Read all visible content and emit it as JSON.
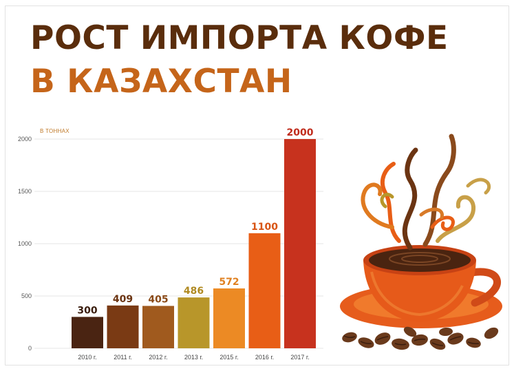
{
  "title": {
    "line1": "РОСТ ИМПОРТА КОФЕ",
    "line2": "В КАЗАХСТАН"
  },
  "unit_label": "В ТОННАХ",
  "chart_data": {
    "type": "bar",
    "title": "РОСТ ИМПОРТА КОФЕ В КАЗАХСТАН",
    "ylabel": "В ТОННАХ",
    "xlabel": "",
    "categories": [
      "2010 г.",
      "2011 г.",
      "2012 г.",
      "2013 г.",
      "2015 г.",
      "2016 г.",
      "2017 г."
    ],
    "values": [
      300,
      409,
      405,
      486,
      572,
      1100,
      2000
    ],
    "data_labels": [
      "300",
      "409",
      "405",
      "486",
      "572",
      "1100",
      "2000"
    ],
    "yticks": [
      0,
      500,
      1000,
      1500,
      2000
    ],
    "ylim": [
      0,
      2000
    ],
    "grid": true,
    "legend": "none",
    "bar_colors": [
      "#4a2412",
      "#7a3a14",
      "#a05a1e",
      "#b8962a",
      "#ec8a24",
      "#e85e16",
      "#c7321e"
    ],
    "label_colors": [
      "#3a1d0e",
      "#6b3412",
      "#8a4a18",
      "#b08a22",
      "#e08020",
      "#d85414",
      "#c02c1c"
    ]
  }
}
